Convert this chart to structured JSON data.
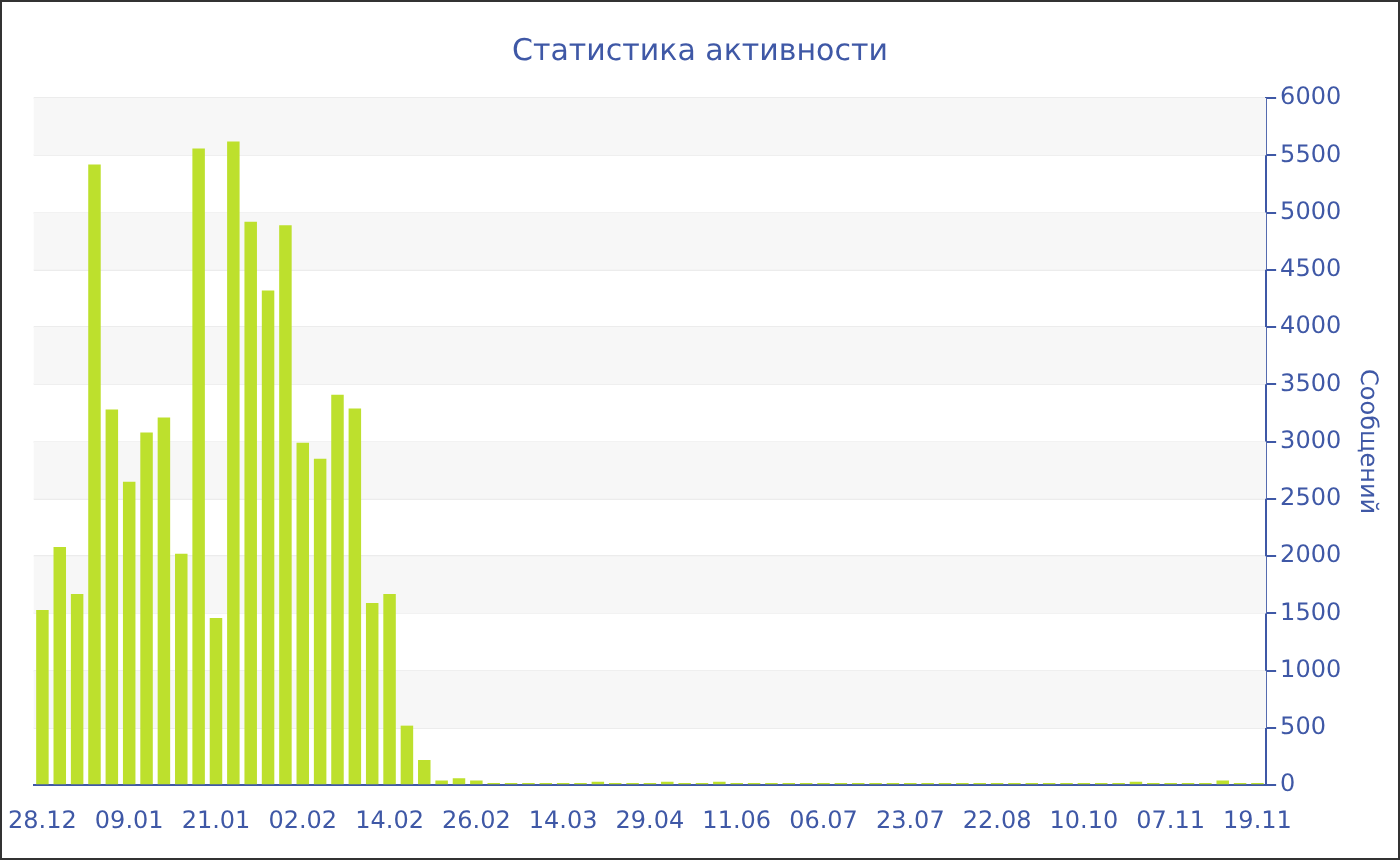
{
  "chart_data": {
    "type": "bar",
    "title": "Статистика активности",
    "ylabel": "Сообщений",
    "categories": [
      "28.12",
      null,
      null,
      null,
      null,
      "09.01",
      null,
      null,
      null,
      null,
      "21.01",
      null,
      null,
      null,
      null,
      "02.02",
      null,
      null,
      null,
      null,
      "14.02",
      null,
      null,
      null,
      null,
      "26.02",
      null,
      null,
      null,
      null,
      "14.03",
      null,
      null,
      null,
      null,
      "29.04",
      null,
      null,
      null,
      null,
      "11.06",
      null,
      null,
      null,
      null,
      "06.07",
      null,
      null,
      null,
      null,
      "23.07",
      null,
      null,
      null,
      null,
      "22.08",
      null,
      null,
      null,
      null,
      "10.10",
      null,
      null,
      null,
      null,
      "07.11",
      null,
      null,
      null,
      null,
      "19.11"
    ],
    "values": [
      1530,
      2080,
      1670,
      5420,
      3280,
      2650,
      3080,
      3210,
      2020,
      5560,
      1460,
      5620,
      4920,
      4320,
      4890,
      2990,
      2850,
      3410,
      3290,
      1590,
      1670,
      520,
      220,
      40,
      60,
      40,
      20,
      20,
      20,
      20,
      20,
      20,
      30,
      20,
      20,
      20,
      30,
      20,
      20,
      30,
      20,
      20,
      20,
      20,
      20,
      20,
      20,
      20,
      20,
      20,
      20,
      20,
      20,
      20,
      20,
      20,
      20,
      20,
      20,
      20,
      20,
      20,
      20,
      30,
      20,
      20,
      20,
      20,
      40,
      20,
      20
    ],
    "color": "#bde02d",
    "ylim": [
      0,
      6000
    ],
    "yticks": [
      0,
      500,
      1000,
      1500,
      2000,
      2500,
      3000,
      3500,
      4000,
      4500,
      5000,
      5500,
      6000
    ],
    "grid": "y"
  }
}
